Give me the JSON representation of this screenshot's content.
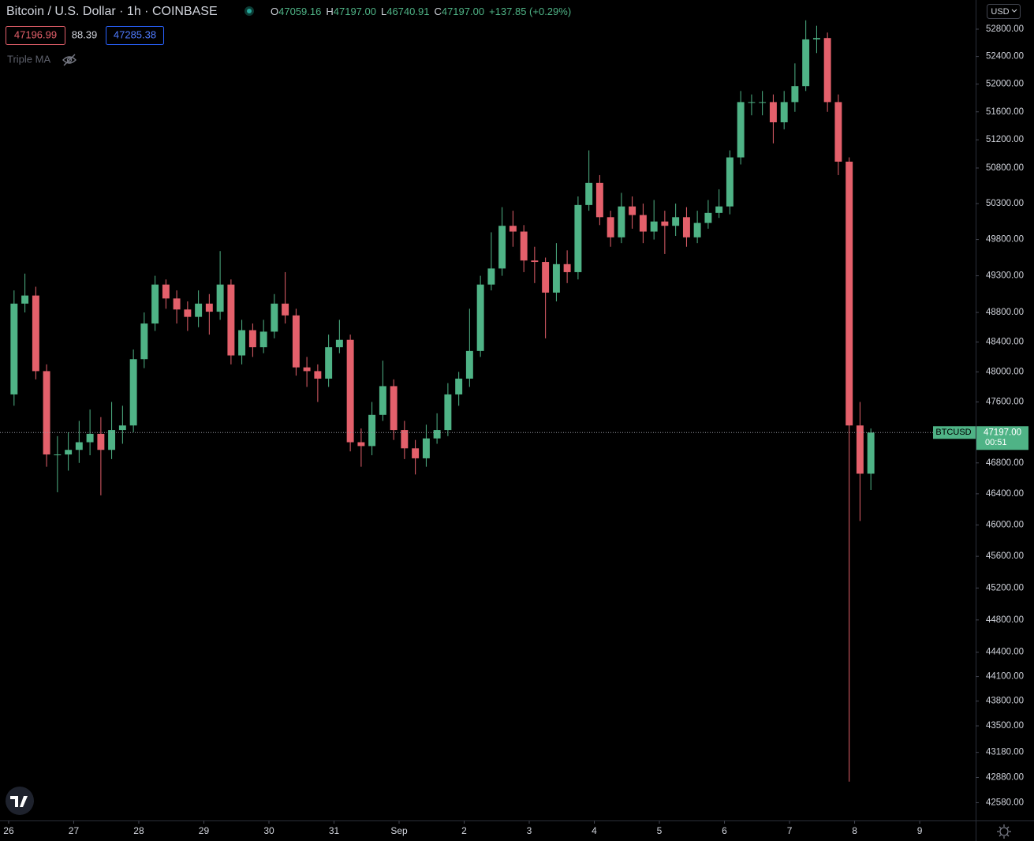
{
  "chart_data": {
    "type": "candlestick",
    "title": "Bitcoin / U.S. Dollar · 1h · COINBASE",
    "ohlc_legend": [
      {
        "label": "O",
        "value": "47059.16"
      },
      {
        "label": "H",
        "value": "47197.00"
      },
      {
        "label": "L",
        "value": "46740.91"
      },
      {
        "label": "C",
        "value": "47197.00"
      }
    ],
    "change": "+137.85 (+0.29%)",
    "bid": "47196.99",
    "spread": "88.39",
    "ask": "47285.38",
    "indicator": "Triple MA",
    "currency": "USD",
    "symbol": "BTCUSD",
    "last_price": {
      "value": 47197,
      "label": "47197.00"
    },
    "countdown": "00:51",
    "up_color": "#4fb386",
    "down_color": "#e4606b",
    "log_scale": true,
    "grid": false,
    "xlim": [
      25.867,
      40.86
    ],
    "ylim": [
      42370,
      53230
    ],
    "xticks": [
      26,
      27,
      28,
      29,
      30,
      31,
      {
        "value": 32,
        "label": "Sep"
      },
      {
        "value": 33,
        "label": "2"
      },
      {
        "value": 34,
        "label": "3"
      },
      {
        "value": 35,
        "label": "4"
      },
      {
        "value": 36,
        "label": "5"
      },
      {
        "value": 37,
        "label": "6"
      },
      {
        "value": 38,
        "label": "7"
      },
      {
        "value": 39,
        "label": "8"
      },
      {
        "value": 40,
        "label": "9"
      }
    ],
    "yticks": [
      {
        "value": 52800,
        "label": "52800.00"
      },
      {
        "value": 52400,
        "label": "52400.00"
      },
      {
        "value": 52000,
        "label": "52000.00"
      },
      {
        "value": 51600,
        "label": "51600.00"
      },
      {
        "value": 51200,
        "label": "51200.00"
      },
      {
        "value": 50800,
        "label": "50800.00"
      },
      {
        "value": 50300,
        "label": "50300.00"
      },
      {
        "value": 49800,
        "label": "49800.00"
      },
      {
        "value": 49300,
        "label": "49300.00"
      },
      {
        "value": 48800,
        "label": "48800.00"
      },
      {
        "value": 48400,
        "label": "48400.00"
      },
      {
        "value": 48000,
        "label": "48000.00"
      },
      {
        "value": 47600,
        "label": "47600.00"
      },
      {
        "value": 46800,
        "label": "46800.00"
      },
      {
        "value": 46400,
        "label": "46400.00"
      },
      {
        "value": 46000,
        "label": "46000.00"
      },
      {
        "value": 45600,
        "label": "45600.00"
      },
      {
        "value": 45200,
        "label": "45200.00"
      },
      {
        "value": 44800,
        "label": "44800.00"
      },
      {
        "value": 44400,
        "label": "44400.00"
      },
      {
        "value": 44100,
        "label": "44100.00"
      },
      {
        "value": 43800,
        "label": "43800.00"
      },
      {
        "value": 43500,
        "label": "43500.00"
      },
      {
        "value": 43180,
        "label": "43180.00"
      },
      {
        "value": 42880,
        "label": "42880.00"
      },
      {
        "value": 42580,
        "label": "42580.00"
      }
    ],
    "x": [
      26.083,
      26.25,
      26.417,
      26.583,
      26.75,
      26.917,
      27.083,
      27.25,
      27.417,
      27.583,
      27.75,
      27.917,
      28.083,
      28.25,
      28.417,
      28.583,
      28.75,
      28.917,
      29.083,
      29.25,
      29.417,
      29.583,
      29.75,
      29.917,
      30.083,
      30.25,
      30.417,
      30.583,
      30.75,
      30.917,
      31.083,
      31.25,
      31.417,
      31.583,
      31.75,
      31.917,
      32.083,
      32.25,
      32.417,
      32.583,
      32.75,
      32.917,
      33.083,
      33.25,
      33.417,
      33.583,
      33.75,
      33.917,
      34.083,
      34.25,
      34.417,
      34.583,
      34.75,
      34.917,
      35.083,
      35.25,
      35.417,
      35.583,
      35.75,
      35.917,
      36.083,
      36.25,
      36.417,
      36.583,
      36.75,
      36.917,
      37.083,
      37.25,
      37.417,
      37.583,
      37.75,
      37.917,
      38.083,
      38.25,
      38.417,
      38.583,
      38.75,
      38.917,
      39.083,
      39.25
    ],
    "open": [
      47700,
      48920,
      49030,
      48010,
      46910,
      46910,
      46970,
      47070,
      47180,
      46970,
      47230,
      47290,
      48170,
      48650,
      49180,
      48990,
      48840,
      48740,
      48920,
      48810,
      49180,
      48220,
      48560,
      48330,
      48540,
      48920,
      48760,
      48060,
      48010,
      47910,
      48330,
      48430,
      47070,
      47020,
      47430,
      47810,
      47230,
      46990,
      46860,
      47120,
      47230,
      47700,
      47910,
      48280,
      49180,
      49400,
      49990,
      49910,
      49510,
      49490,
      49070,
      49460,
      49350,
      50280,
      50590,
      50110,
      49830,
      50260,
      50140,
      49910,
      50050,
      49990,
      50110,
      49830,
      50030,
      50170,
      50260,
      50950,
      51740,
      51740,
      51740,
      51450,
      51740,
      51970,
      52650,
      52670,
      51740,
      50890,
      47290,
      46660
    ],
    "high": [
      49100,
      49330,
      49150,
      48100,
      47150,
      47200,
      47350,
      47500,
      47400,
      47600,
      47550,
      48300,
      48800,
      49300,
      49250,
      49100,
      48950,
      49100,
      49050,
      49640,
      49250,
      48700,
      48650,
      48700,
      49050,
      49350,
      48850,
      48200,
      48100,
      48500,
      48700,
      48500,
      47250,
      47600,
      48150,
      47900,
      47350,
      47100,
      47300,
      47450,
      47850,
      48000,
      48850,
      49300,
      49900,
      50250,
      50200,
      50000,
      49700,
      49550,
      49750,
      49650,
      50400,
      51050,
      50700,
      50200,
      50450,
      50400,
      50300,
      50350,
      50200,
      50300,
      50250,
      50200,
      50350,
      50500,
      51050,
      51900,
      51850,
      51900,
      51850,
      51900,
      52300,
      52930,
      52850,
      52750,
      51850,
      50950,
      47600,
      47250
    ],
    "low": [
      47550,
      48800,
      47900,
      46750,
      46420,
      46700,
      46800,
      46900,
      46380,
      46850,
      47050,
      47200,
      48050,
      48550,
      48850,
      48650,
      48550,
      48600,
      48500,
      48700,
      48100,
      48100,
      48200,
      48250,
      48450,
      48650,
      47950,
      47800,
      47600,
      47800,
      48250,
      46950,
      46750,
      46900,
      47350,
      47100,
      46850,
      46650,
      46750,
      47050,
      47150,
      47550,
      47800,
      48200,
      49100,
      49300,
      49700,
      49350,
      49200,
      48450,
      48950,
      49200,
      49250,
      50200,
      50000,
      49700,
      49750,
      49950,
      49750,
      49800,
      49600,
      49850,
      49700,
      49750,
      49950,
      50100,
      50150,
      50850,
      51550,
      51550,
      51150,
      51350,
      51600,
      51900,
      52450,
      51600,
      50700,
      42830,
      46050,
      46450
    ],
    "close": [
      48920,
      49030,
      48010,
      46910,
      46910,
      46970,
      47070,
      47180,
      46970,
      47230,
      47290,
      48170,
      48650,
      49180,
      48990,
      48840,
      48740,
      48920,
      48810,
      49180,
      48220,
      48560,
      48330,
      48540,
      48920,
      48760,
      48060,
      48010,
      47910,
      48330,
      48430,
      47070,
      47020,
      47430,
      47810,
      47230,
      46990,
      46860,
      47120,
      47230,
      47700,
      47910,
      48280,
      49180,
      49400,
      49990,
      49910,
      49510,
      49490,
      49070,
      49460,
      49350,
      50280,
      50590,
      50110,
      49830,
      50260,
      50140,
      49910,
      50050,
      49990,
      50110,
      49830,
      50030,
      50170,
      50260,
      50950,
      51740,
      51740,
      51740,
      51450,
      51740,
      51970,
      52650,
      52670,
      51740,
      50890,
      47290,
      46660,
      47197
    ]
  }
}
